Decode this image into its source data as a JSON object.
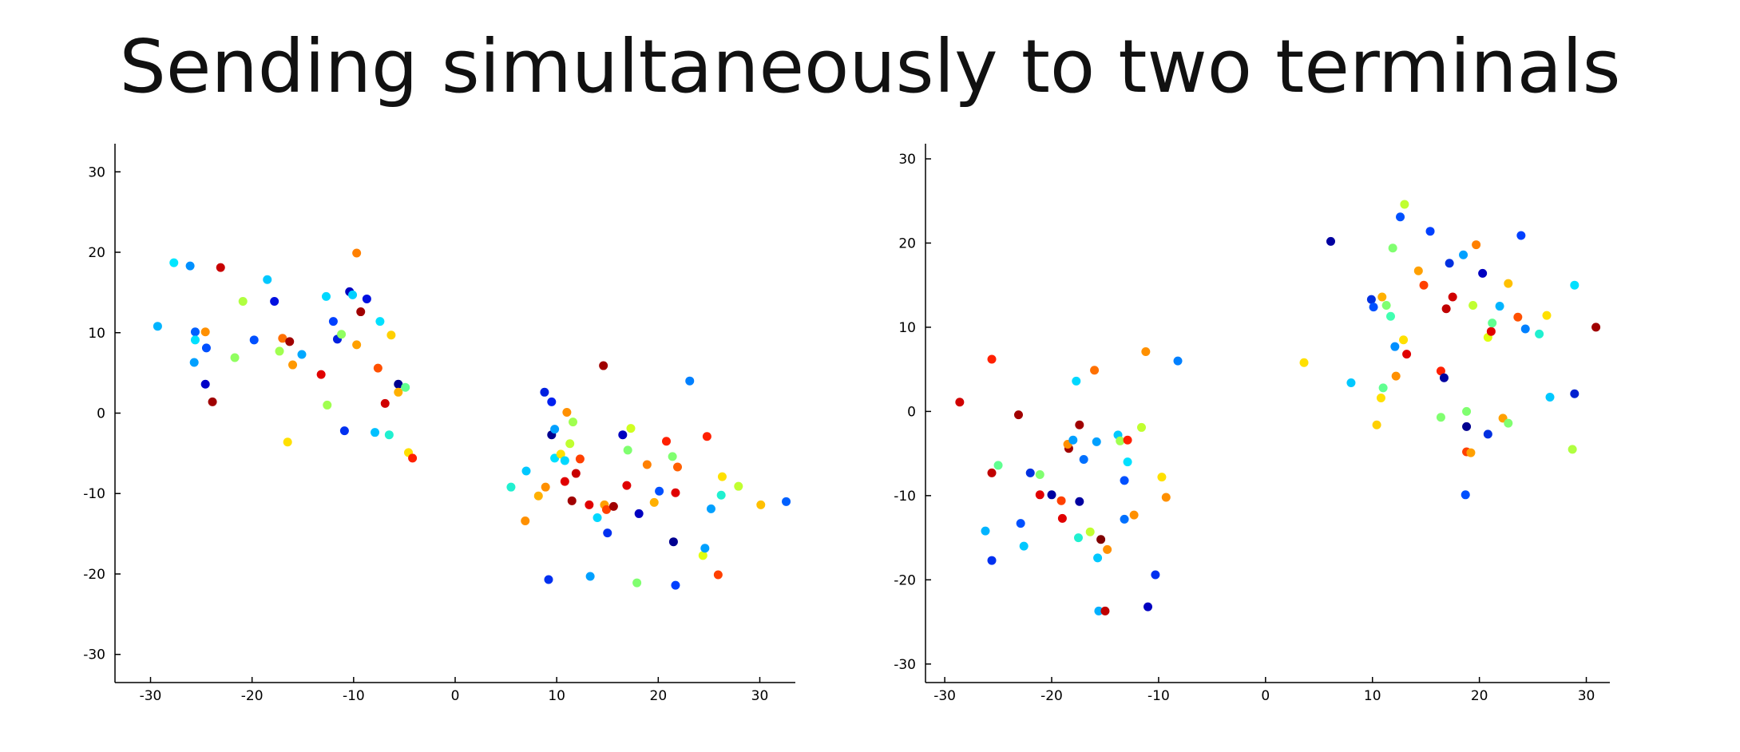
{
  "title": "Sending simultaneously to two terminals",
  "chart_data": [
    {
      "type": "scatter",
      "title": "",
      "xlabel": "",
      "ylabel": "",
      "xlim": [
        -33.5,
        33.5
      ],
      "ylim": [
        -33.5,
        33.5
      ],
      "xticks": [
        -30,
        -20,
        -10,
        0,
        10,
        20,
        30
      ],
      "yticks": [
        -30,
        -20,
        -10,
        0,
        10,
        20,
        30
      ],
      "tick_labels_x": [
        "-30",
        "-20",
        "-10",
        "0",
        "10",
        "20",
        "30"
      ],
      "tick_labels_y": [
        "-30",
        "-20",
        "-10",
        "0",
        "10",
        "20",
        "30"
      ],
      "grid": false,
      "points": [
        {
          "x": -29.3,
          "y": 10.8,
          "color": "#00b4ff"
        },
        {
          "x": -27.7,
          "y": 18.7,
          "color": "#00e6ff"
        },
        {
          "x": -26.1,
          "y": 18.3,
          "color": "#0090ff"
        },
        {
          "x": -25.6,
          "y": 10.1,
          "color": "#0060ff"
        },
        {
          "x": -25.7,
          "y": 6.3,
          "color": "#00a0ff"
        },
        {
          "x": -25.6,
          "y": 9.1,
          "color": "#00e0ff"
        },
        {
          "x": -24.6,
          "y": 10.1,
          "color": "#ff9000"
        },
        {
          "x": -24.5,
          "y": 8.1,
          "color": "#0050ff"
        },
        {
          "x": -24.6,
          "y": 3.6,
          "color": "#0000c8"
        },
        {
          "x": -23.9,
          "y": 1.4,
          "color": "#a00000"
        },
        {
          "x": -23.1,
          "y": 18.1,
          "color": "#c80000"
        },
        {
          "x": -21.7,
          "y": 6.9,
          "color": "#90ff60"
        },
        {
          "x": -20.9,
          "y": 13.9,
          "color": "#b0ff40"
        },
        {
          "x": -19.8,
          "y": 9.1,
          "color": "#0050ff"
        },
        {
          "x": -18.5,
          "y": 16.6,
          "color": "#00c8ff"
        },
        {
          "x": -17.8,
          "y": 13.9,
          "color": "#0010e0"
        },
        {
          "x": -17.3,
          "y": 7.7,
          "color": "#a0ff50"
        },
        {
          "x": -17.0,
          "y": 9.3,
          "color": "#ff7000"
        },
        {
          "x": -16.3,
          "y": 8.9,
          "color": "#a00000"
        },
        {
          "x": -16.5,
          "y": -3.6,
          "color": "#ffe000"
        },
        {
          "x": -16.0,
          "y": 6.0,
          "color": "#ff9800"
        },
        {
          "x": -15.1,
          "y": 7.3,
          "color": "#00a8ff"
        },
        {
          "x": -13.2,
          "y": 4.8,
          "color": "#e00000"
        },
        {
          "x": -12.7,
          "y": 14.5,
          "color": "#00d8ff"
        },
        {
          "x": -12.6,
          "y": 1.0,
          "color": "#a0ff50"
        },
        {
          "x": -12.0,
          "y": 11.4,
          "color": "#0040ff"
        },
        {
          "x": -11.6,
          "y": 9.2,
          "color": "#0020e0"
        },
        {
          "x": -11.2,
          "y": 9.8,
          "color": "#90ff60"
        },
        {
          "x": -10.9,
          "y": -2.2,
          "color": "#0030f0"
        },
        {
          "x": -10.4,
          "y": 15.1,
          "color": "#0000c0"
        },
        {
          "x": -10.1,
          "y": 14.7,
          "color": "#00d0ff"
        },
        {
          "x": -9.7,
          "y": 19.9,
          "color": "#ff8000"
        },
        {
          "x": -9.7,
          "y": 8.5,
          "color": "#ffa000"
        },
        {
          "x": -9.3,
          "y": 12.6,
          "color": "#a00000"
        },
        {
          "x": -8.7,
          "y": 14.2,
          "color": "#0010e0"
        },
        {
          "x": -7.9,
          "y": -2.4,
          "color": "#00c0ff"
        },
        {
          "x": -7.4,
          "y": 11.4,
          "color": "#00e0ff"
        },
        {
          "x": -7.6,
          "y": 5.6,
          "color": "#ff5000"
        },
        {
          "x": -6.9,
          "y": 1.2,
          "color": "#d00000"
        },
        {
          "x": -6.5,
          "y": -2.7,
          "color": "#20f0d0"
        },
        {
          "x": -6.3,
          "y": 9.7,
          "color": "#ffd000"
        },
        {
          "x": -5.6,
          "y": 3.6,
          "color": "#000090"
        },
        {
          "x": -5.6,
          "y": 2.6,
          "color": "#ffb000"
        },
        {
          "x": -4.9,
          "y": 3.2,
          "color": "#60ff90"
        },
        {
          "x": -4.6,
          "y": -4.9,
          "color": "#ffe000"
        },
        {
          "x": -4.2,
          "y": -5.6,
          "color": "#ff2000"
        },
        {
          "x": 5.5,
          "y": -9.2,
          "color": "#20f0d0"
        },
        {
          "x": 6.9,
          "y": -13.4,
          "color": "#ff9000"
        },
        {
          "x": 7.0,
          "y": -7.2,
          "color": "#00c8ff"
        },
        {
          "x": 8.2,
          "y": -10.3,
          "color": "#ffb000"
        },
        {
          "x": 8.8,
          "y": 2.6,
          "color": "#0020e0"
        },
        {
          "x": 8.9,
          "y": -9.2,
          "color": "#ff9000"
        },
        {
          "x": 9.2,
          "y": -20.7,
          "color": "#0030f0"
        },
        {
          "x": 9.5,
          "y": 1.4,
          "color": "#0020f0"
        },
        {
          "x": 9.5,
          "y": -2.7,
          "color": "#000090"
        },
        {
          "x": 9.8,
          "y": -2.0,
          "color": "#00a0ff"
        },
        {
          "x": 9.8,
          "y": -5.6,
          "color": "#00e0ff"
        },
        {
          "x": 10.4,
          "y": -5.1,
          "color": "#ffe000"
        },
        {
          "x": 10.8,
          "y": -5.9,
          "color": "#00d8ff"
        },
        {
          "x": 10.8,
          "y": -8.5,
          "color": "#e00000"
        },
        {
          "x": 11.0,
          "y": 0.1,
          "color": "#ff9000"
        },
        {
          "x": 11.3,
          "y": -3.8,
          "color": "#c0ff30"
        },
        {
          "x": 11.5,
          "y": -10.9,
          "color": "#a00000"
        },
        {
          "x": 11.6,
          "y": -1.1,
          "color": "#a0ff50"
        },
        {
          "x": 11.9,
          "y": -7.5,
          "color": "#c80000"
        },
        {
          "x": 12.3,
          "y": -5.7,
          "color": "#ff4000"
        },
        {
          "x": 13.2,
          "y": -11.4,
          "color": "#e00000"
        },
        {
          "x": 13.3,
          "y": -20.3,
          "color": "#00a0ff"
        },
        {
          "x": 14.0,
          "y": -13.0,
          "color": "#00d8ff"
        },
        {
          "x": 14.6,
          "y": 5.9,
          "color": "#a00000"
        },
        {
          "x": 14.7,
          "y": -11.4,
          "color": "#ffa000"
        },
        {
          "x": 14.9,
          "y": -12.0,
          "color": "#ff4000"
        },
        {
          "x": 15.0,
          "y": -14.9,
          "color": "#0030f0"
        },
        {
          "x": 15.6,
          "y": -11.6,
          "color": "#a00000"
        },
        {
          "x": 16.5,
          "y": -2.7,
          "color": "#0000c0"
        },
        {
          "x": 16.9,
          "y": -9.0,
          "color": "#e00000"
        },
        {
          "x": 17.0,
          "y": -4.6,
          "color": "#80ff70"
        },
        {
          "x": 17.3,
          "y": -1.9,
          "color": "#d0ff20"
        },
        {
          "x": 17.9,
          "y": -21.1,
          "color": "#80ff70"
        },
        {
          "x": 18.1,
          "y": -12.5,
          "color": "#0000c0"
        },
        {
          "x": 18.9,
          "y": -6.4,
          "color": "#ff8000"
        },
        {
          "x": 19.6,
          "y": -11.1,
          "color": "#ffb000"
        },
        {
          "x": 20.1,
          "y": -9.7,
          "color": "#0050ff"
        },
        {
          "x": 20.8,
          "y": -3.5,
          "color": "#ff2000"
        },
        {
          "x": 21.4,
          "y": -5.4,
          "color": "#80ff70"
        },
        {
          "x": 21.5,
          "y": -16.0,
          "color": "#000090"
        },
        {
          "x": 21.7,
          "y": -9.9,
          "color": "#e00000"
        },
        {
          "x": 21.7,
          "y": -21.4,
          "color": "#0040ff"
        },
        {
          "x": 21.9,
          "y": -6.7,
          "color": "#ff6000"
        },
        {
          "x": 23.1,
          "y": 4.0,
          "color": "#0080ff"
        },
        {
          "x": 24.4,
          "y": -17.7,
          "color": "#e0ff10"
        },
        {
          "x": 24.6,
          "y": -16.8,
          "color": "#00a0ff"
        },
        {
          "x": 24.8,
          "y": -2.9,
          "color": "#ff2000"
        },
        {
          "x": 25.2,
          "y": -11.9,
          "color": "#00a0ff"
        },
        {
          "x": 25.9,
          "y": -20.1,
          "color": "#ff4000"
        },
        {
          "x": 26.2,
          "y": -10.2,
          "color": "#20f0d0"
        },
        {
          "x": 26.3,
          "y": -7.9,
          "color": "#ffe000"
        },
        {
          "x": 27.9,
          "y": -9.1,
          "color": "#c0ff30"
        },
        {
          "x": 30.1,
          "y": -11.4,
          "color": "#ffc000"
        },
        {
          "x": 32.6,
          "y": -11.0,
          "color": "#0060ff"
        }
      ]
    },
    {
      "type": "scatter",
      "title": "",
      "xlabel": "",
      "ylabel": "",
      "xlim": [
        -31.8,
        32.2
      ],
      "ylim": [
        -32.2,
        31.8
      ],
      "xticks": [
        -30,
        -20,
        -10,
        0,
        10,
        20,
        30
      ],
      "yticks": [
        -30,
        -20,
        -10,
        0,
        10,
        20,
        30
      ],
      "tick_labels_x": [
        "-30",
        "-20",
        "-10",
        "0",
        "10",
        "20",
        "30"
      ],
      "tick_labels_y": [
        "-30",
        "-20",
        "-10",
        "0",
        "10",
        "20",
        "30"
      ],
      "grid": false,
      "points": [
        {
          "x": -28.6,
          "y": 1.1,
          "color": "#d00000"
        },
        {
          "x": -26.2,
          "y": -14.2,
          "color": "#00b4ff"
        },
        {
          "x": -25.6,
          "y": -17.7,
          "color": "#0030f0"
        },
        {
          "x": -25.6,
          "y": 6.2,
          "color": "#ff2000"
        },
        {
          "x": -25.6,
          "y": -7.3,
          "color": "#c00000"
        },
        {
          "x": -25.0,
          "y": -6.4,
          "color": "#60ff90"
        },
        {
          "x": -23.1,
          "y": -0.4,
          "color": "#a00000"
        },
        {
          "x": -22.9,
          "y": -13.3,
          "color": "#0050ff"
        },
        {
          "x": -22.6,
          "y": -16.0,
          "color": "#00c8ff"
        },
        {
          "x": -22.0,
          "y": -7.3,
          "color": "#0030e0"
        },
        {
          "x": -21.1,
          "y": -9.9,
          "color": "#e00000"
        },
        {
          "x": -21.1,
          "y": -7.5,
          "color": "#80ff70"
        },
        {
          "x": -20.0,
          "y": -9.9,
          "color": "#0000a0"
        },
        {
          "x": -19.1,
          "y": -10.6,
          "color": "#ff4000"
        },
        {
          "x": -19.0,
          "y": -12.7,
          "color": "#e00000"
        },
        {
          "x": -18.4,
          "y": -4.4,
          "color": "#a00000"
        },
        {
          "x": -18.5,
          "y": -3.9,
          "color": "#ff9000"
        },
        {
          "x": -18.0,
          "y": -3.4,
          "color": "#00a0ff"
        },
        {
          "x": -17.7,
          "y": 3.6,
          "color": "#00d8ff"
        },
        {
          "x": -17.5,
          "y": -15.0,
          "color": "#20f0d0"
        },
        {
          "x": -17.4,
          "y": -10.7,
          "color": "#0000a0"
        },
        {
          "x": -17.4,
          "y": -1.6,
          "color": "#a00000"
        },
        {
          "x": -17.0,
          "y": -5.7,
          "color": "#0070ff"
        },
        {
          "x": -16.4,
          "y": -14.3,
          "color": "#c0ff30"
        },
        {
          "x": -16.0,
          "y": 4.9,
          "color": "#ff7000"
        },
        {
          "x": -15.8,
          "y": -3.6,
          "color": "#00a0ff"
        },
        {
          "x": -15.7,
          "y": -17.4,
          "color": "#00c8ff"
        },
        {
          "x": -15.6,
          "y": -23.7,
          "color": "#00b0ff"
        },
        {
          "x": -15.4,
          "y": -15.2,
          "color": "#800000"
        },
        {
          "x": -15.0,
          "y": -23.7,
          "color": "#c00000"
        },
        {
          "x": -14.8,
          "y": -16.4,
          "color": "#ff9000"
        },
        {
          "x": -13.8,
          "y": -2.8,
          "color": "#00c8ff"
        },
        {
          "x": -13.6,
          "y": -3.5,
          "color": "#a0ff50"
        },
        {
          "x": -13.2,
          "y": -8.2,
          "color": "#0050ff"
        },
        {
          "x": -13.2,
          "y": -12.8,
          "color": "#0070ff"
        },
        {
          "x": -12.9,
          "y": -6.0,
          "color": "#00e0ff"
        },
        {
          "x": -12.9,
          "y": -3.4,
          "color": "#ff2000"
        },
        {
          "x": -12.3,
          "y": -12.3,
          "color": "#ff9000"
        },
        {
          "x": -11.6,
          "y": -1.9,
          "color": "#c0ff30"
        },
        {
          "x": -11.2,
          "y": 7.1,
          "color": "#ff9000"
        },
        {
          "x": -11.0,
          "y": -23.2,
          "color": "#0000c0"
        },
        {
          "x": -10.3,
          "y": -19.4,
          "color": "#0030f0"
        },
        {
          "x": -9.7,
          "y": -7.8,
          "color": "#ffe000"
        },
        {
          "x": -9.3,
          "y": -10.2,
          "color": "#ff9000"
        },
        {
          "x": -8.2,
          "y": 6.0,
          "color": "#0080ff"
        },
        {
          "x": 3.6,
          "y": 5.8,
          "color": "#ffe000"
        },
        {
          "x": 6.1,
          "y": 20.2,
          "color": "#0000a0"
        },
        {
          "x": 8.0,
          "y": 3.4,
          "color": "#00c8ff"
        },
        {
          "x": 9.9,
          "y": 13.3,
          "color": "#0030e0"
        },
        {
          "x": 10.1,
          "y": 12.4,
          "color": "#0050ff"
        },
        {
          "x": 10.4,
          "y": -1.6,
          "color": "#ffd000"
        },
        {
          "x": 10.8,
          "y": 1.6,
          "color": "#ffe000"
        },
        {
          "x": 10.9,
          "y": 13.6,
          "color": "#ffb000"
        },
        {
          "x": 11.0,
          "y": 2.8,
          "color": "#60ff90"
        },
        {
          "x": 11.3,
          "y": 12.6,
          "color": "#80ff70"
        },
        {
          "x": 11.7,
          "y": 11.3,
          "color": "#40ffb0"
        },
        {
          "x": 11.9,
          "y": 19.4,
          "color": "#80ff70"
        },
        {
          "x": 12.1,
          "y": 7.7,
          "color": "#0090ff"
        },
        {
          "x": 12.2,
          "y": 4.2,
          "color": "#ff9000"
        },
        {
          "x": 12.6,
          "y": 23.1,
          "color": "#0050ff"
        },
        {
          "x": 12.9,
          "y": 8.5,
          "color": "#ffe000"
        },
        {
          "x": 13.0,
          "y": 24.6,
          "color": "#c0ff30"
        },
        {
          "x": 13.2,
          "y": 6.8,
          "color": "#e00000"
        },
        {
          "x": 14.3,
          "y": 16.7,
          "color": "#ffa000"
        },
        {
          "x": 14.8,
          "y": 15.0,
          "color": "#ff4000"
        },
        {
          "x": 15.4,
          "y": 21.4,
          "color": "#0040ff"
        },
        {
          "x": 16.4,
          "y": 4.8,
          "color": "#ff2000"
        },
        {
          "x": 16.4,
          "y": -0.7,
          "color": "#80ff70"
        },
        {
          "x": 16.7,
          "y": 4.0,
          "color": "#0000a0"
        },
        {
          "x": 16.9,
          "y": 12.2,
          "color": "#c00000"
        },
        {
          "x": 17.2,
          "y": 17.6,
          "color": "#0030e0"
        },
        {
          "x": 17.5,
          "y": 13.6,
          "color": "#d00000"
        },
        {
          "x": 18.5,
          "y": 18.6,
          "color": "#00a0ff"
        },
        {
          "x": 18.7,
          "y": -9.9,
          "color": "#0050ff"
        },
        {
          "x": 18.8,
          "y": -1.8,
          "color": "#000090"
        },
        {
          "x": 18.8,
          "y": 0.0,
          "color": "#80ff70"
        },
        {
          "x": 18.8,
          "y": -4.8,
          "color": "#ff4000"
        },
        {
          "x": 19.2,
          "y": -4.9,
          "color": "#ffa000"
        },
        {
          "x": 19.4,
          "y": 12.6,
          "color": "#c0ff30"
        },
        {
          "x": 19.7,
          "y": 19.8,
          "color": "#ff8000"
        },
        {
          "x": 20.3,
          "y": 16.4,
          "color": "#0000c0"
        },
        {
          "x": 20.8,
          "y": -2.7,
          "color": "#0030e0"
        },
        {
          "x": 20.8,
          "y": 8.8,
          "color": "#e0ff10"
        },
        {
          "x": 21.1,
          "y": 9.5,
          "color": "#e00000"
        },
        {
          "x": 21.2,
          "y": 10.5,
          "color": "#60ff90"
        },
        {
          "x": 21.9,
          "y": 12.5,
          "color": "#00b4ff"
        },
        {
          "x": 22.2,
          "y": -0.8,
          "color": "#ffa000"
        },
        {
          "x": 22.7,
          "y": -1.4,
          "color": "#80ff70"
        },
        {
          "x": 22.7,
          "y": 15.2,
          "color": "#ffc000"
        },
        {
          "x": 23.6,
          "y": 11.2,
          "color": "#ff5000"
        },
        {
          "x": 23.9,
          "y": 20.9,
          "color": "#0040ff"
        },
        {
          "x": 24.3,
          "y": 9.8,
          "color": "#0080ff"
        },
        {
          "x": 25.6,
          "y": 9.2,
          "color": "#20f0d0"
        },
        {
          "x": 26.3,
          "y": 11.4,
          "color": "#ffe000"
        },
        {
          "x": 26.6,
          "y": 1.7,
          "color": "#00c8ff"
        },
        {
          "x": 28.7,
          "y": -4.5,
          "color": "#b0ff40"
        },
        {
          "x": 28.9,
          "y": 2.1,
          "color": "#0020d0"
        },
        {
          "x": 28.9,
          "y": 15.0,
          "color": "#00e0ff"
        },
        {
          "x": 30.9,
          "y": 10.0,
          "color": "#a00000"
        }
      ]
    }
  ]
}
